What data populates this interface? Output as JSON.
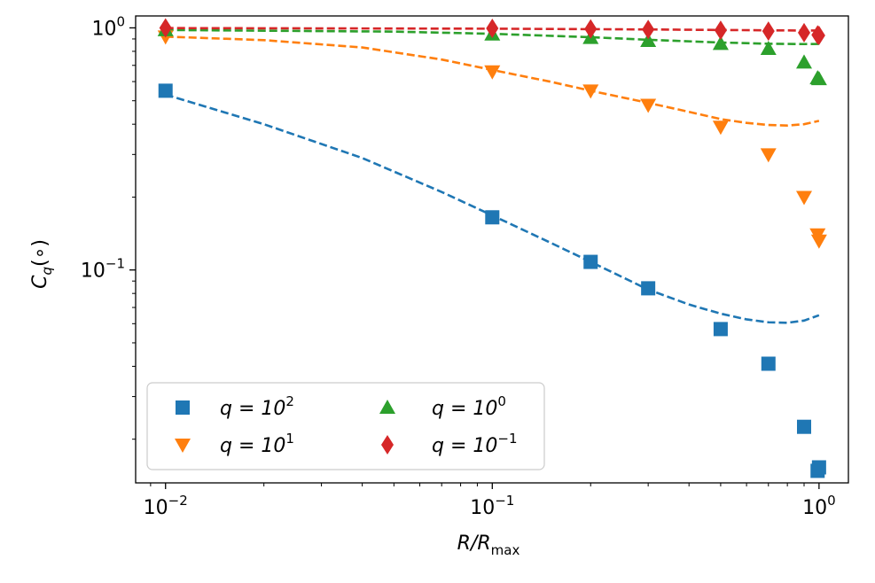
{
  "chart_data": {
    "type": "scatter",
    "title": "",
    "xscale": "log",
    "yscale": "log",
    "xlim": [
      0.0081,
      1.23
    ],
    "ylim": [
      0.0132,
      1.12
    ],
    "xlabel": {
      "main": "R/R",
      "sub": "max"
    },
    "ylabel": {
      "main": "C",
      "sub": "q",
      "suffix": "(∘)"
    },
    "xticks": [
      {
        "value": 0.01,
        "base": "10",
        "exp": "−2"
      },
      {
        "value": 0.1,
        "base": "10",
        "exp": "−1"
      },
      {
        "value": 1,
        "base": "10",
        "exp": "0"
      }
    ],
    "yticks": [
      {
        "value": 0.1,
        "base": "10",
        "exp": "−1"
      },
      {
        "value": 1,
        "base": "10",
        "exp": "0"
      }
    ],
    "legend": {
      "placement": "lower-left",
      "columns": 2
    },
    "series": [
      {
        "name": "q = 10^2",
        "label": {
          "prefix": "q = 10",
          "exp": "2"
        },
        "color": "#1f77b4",
        "marker": "square",
        "points": [
          [
            0.01,
            0.55
          ],
          [
            0.1,
            0.165
          ],
          [
            0.2,
            0.108
          ],
          [
            0.3,
            0.084
          ],
          [
            0.5,
            0.057
          ],
          [
            0.7,
            0.041
          ],
          [
            0.9,
            0.0225
          ],
          [
            0.99,
            0.0148
          ],
          [
            1.0,
            0.0153
          ]
        ],
        "fit": [
          [
            0.01,
            0.53
          ],
          [
            0.02,
            0.4
          ],
          [
            0.04,
            0.29
          ],
          [
            0.07,
            0.21
          ],
          [
            0.1,
            0.168
          ],
          [
            0.15,
            0.13
          ],
          [
            0.2,
            0.108
          ],
          [
            0.3,
            0.083
          ],
          [
            0.4,
            0.072
          ],
          [
            0.5,
            0.066
          ],
          [
            0.6,
            0.0625
          ],
          [
            0.7,
            0.0608
          ],
          [
            0.8,
            0.0605
          ],
          [
            0.9,
            0.0618
          ],
          [
            1.0,
            0.065
          ]
        ]
      },
      {
        "name": "q = 10^1",
        "label": {
          "prefix": "q = 10",
          "exp": "1"
        },
        "color": "#ff7f0e",
        "marker": "triangle-down",
        "points": [
          [
            0.01,
            0.92
          ],
          [
            0.1,
            0.66
          ],
          [
            0.2,
            0.55
          ],
          [
            0.3,
            0.48
          ],
          [
            0.5,
            0.39
          ],
          [
            0.7,
            0.3
          ],
          [
            0.9,
            0.2
          ],
          [
            0.99,
            0.14
          ],
          [
            1.0,
            0.132
          ]
        ],
        "fit": [
          [
            0.01,
            0.92
          ],
          [
            0.02,
            0.89
          ],
          [
            0.04,
            0.83
          ],
          [
            0.07,
            0.74
          ],
          [
            0.1,
            0.67
          ],
          [
            0.15,
            0.6
          ],
          [
            0.2,
            0.55
          ],
          [
            0.3,
            0.49
          ],
          [
            0.4,
            0.45
          ],
          [
            0.5,
            0.42
          ],
          [
            0.6,
            0.405
          ],
          [
            0.7,
            0.397
          ],
          [
            0.8,
            0.395
          ],
          [
            0.9,
            0.4
          ],
          [
            1.0,
            0.413
          ]
        ]
      },
      {
        "name": "q = 10^0",
        "label": {
          "prefix": "q = 10",
          "exp": "0"
        },
        "color": "#2ca02c",
        "marker": "triangle-up",
        "points": [
          [
            0.01,
            0.98
          ],
          [
            0.1,
            0.94
          ],
          [
            0.2,
            0.91
          ],
          [
            0.3,
            0.885
          ],
          [
            0.5,
            0.86
          ],
          [
            0.7,
            0.82
          ],
          [
            0.9,
            0.72
          ],
          [
            0.99,
            0.62
          ],
          [
            1.0,
            0.615
          ]
        ],
        "fit": [
          [
            0.01,
            0.98
          ],
          [
            0.05,
            0.965
          ],
          [
            0.1,
            0.945
          ],
          [
            0.2,
            0.915
          ],
          [
            0.3,
            0.893
          ],
          [
            0.5,
            0.87
          ],
          [
            0.7,
            0.86
          ],
          [
            0.9,
            0.857
          ],
          [
            1.0,
            0.858
          ]
        ]
      },
      {
        "name": "q = 10^-1",
        "label": {
          "prefix": "q = 10",
          "exp": "−1"
        },
        "color": "#d62728",
        "marker": "diamond",
        "points": [
          [
            0.01,
            1.0
          ],
          [
            0.1,
            0.995
          ],
          [
            0.2,
            0.99
          ],
          [
            0.3,
            0.985
          ],
          [
            0.5,
            0.978
          ],
          [
            0.7,
            0.97
          ],
          [
            0.9,
            0.955
          ],
          [
            0.99,
            0.935
          ],
          [
            1.0,
            0.93
          ]
        ],
        "fit": [
          [
            0.01,
            0.998
          ],
          [
            0.1,
            0.992
          ],
          [
            0.3,
            0.985
          ],
          [
            0.5,
            0.98
          ],
          [
            0.7,
            0.977
          ],
          [
            0.9,
            0.975
          ],
          [
            1.0,
            0.975
          ]
        ]
      }
    ]
  }
}
